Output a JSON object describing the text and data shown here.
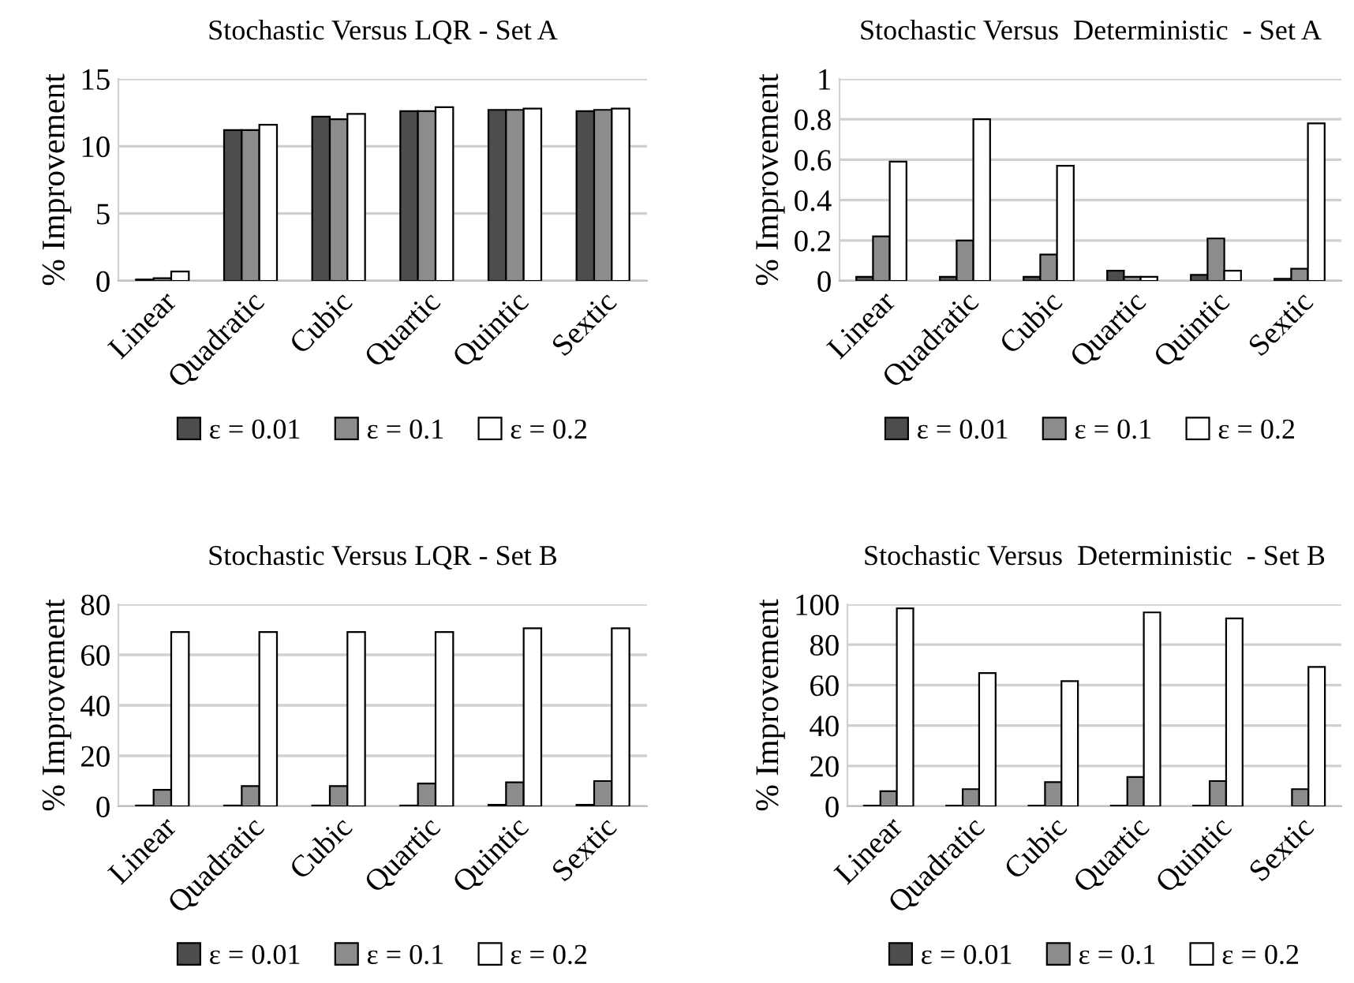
{
  "chart_data": [
    {
      "type": "bar",
      "title": "Stochastic Versus LQR - Set A",
      "ylabel": "% Improvement",
      "categories": [
        "Linear",
        "Quadratic",
        "Cubic",
        "Quartic",
        "Quintic",
        "Sextic"
      ],
      "series": [
        {
          "name": "ε = 0.01",
          "color": "#4d4d4d",
          "values": [
            0.1,
            11.2,
            12.2,
            12.6,
            12.7,
            12.6
          ]
        },
        {
          "name": "ε = 0.1",
          "color": "#8c8c8c",
          "values": [
            0.2,
            11.2,
            12.0,
            12.6,
            12.7,
            12.7
          ]
        },
        {
          "name": "ε = 0.2",
          "color": "#ffffff",
          "values": [
            0.7,
            11.6,
            12.4,
            12.9,
            12.8,
            12.8
          ]
        }
      ],
      "ylim": [
        0,
        15
      ],
      "yticks": [
        0,
        5,
        10,
        15
      ],
      "grid": "y",
      "legend": "bottom"
    },
    {
      "type": "bar",
      "title": "Stochastic Versus  Deterministic  - Set A",
      "ylabel": "% Improvement",
      "categories": [
        "Linear",
        "Quadratic",
        "Cubic",
        "Quartic",
        "Quintic",
        "Sextic"
      ],
      "series": [
        {
          "name": "ε = 0.01",
          "color": "#4d4d4d",
          "values": [
            0.02,
            0.02,
            0.02,
            0.05,
            0.03,
            0.01
          ]
        },
        {
          "name": "ε = 0.1",
          "color": "#8c8c8c",
          "values": [
            0.22,
            0.2,
            0.13,
            0.02,
            0.21,
            0.06
          ]
        },
        {
          "name": "ε = 0.2",
          "color": "#ffffff",
          "values": [
            0.59,
            0.8,
            0.57,
            0.02,
            0.05,
            0.78
          ]
        }
      ],
      "ylim": [
        0,
        1
      ],
      "yticks": [
        0,
        0.2,
        0.4,
        0.6,
        0.8,
        1
      ],
      "grid": "y",
      "legend": "bottom"
    },
    {
      "type": "bar",
      "title": "Stochastic Versus LQR - Set B",
      "ylabel": "% Improvement",
      "categories": [
        "Linear",
        "Quadratic",
        "Cubic",
        "Quartic",
        "Quintic",
        "Sextic"
      ],
      "series": [
        {
          "name": "ε = 0.01",
          "color": "#4d4d4d",
          "values": [
            0.3,
            0.3,
            0.3,
            0.3,
            0.6,
            0.6
          ]
        },
        {
          "name": "ε = 0.1",
          "color": "#8c8c8c",
          "values": [
            6.5,
            8,
            8,
            9,
            9.5,
            10
          ]
        },
        {
          "name": "ε = 0.2",
          "color": "#ffffff",
          "values": [
            69,
            69,
            69,
            69,
            70.5,
            70.5
          ]
        }
      ],
      "ylim": [
        0,
        80
      ],
      "yticks": [
        0,
        20,
        40,
        60,
        80
      ],
      "grid": "y",
      "legend": "bottom"
    },
    {
      "type": "bar",
      "title": "Stochastic Versus  Deterministic  - Set B",
      "ylabel": "% Improvement",
      "categories": [
        "Linear",
        "Quadratic",
        "Cubic",
        "Quartic",
        "Quintic",
        "Sextic"
      ],
      "series": [
        {
          "name": "ε = 0.01",
          "color": "#4d4d4d",
          "values": [
            0.3,
            0.3,
            0.3,
            0.3,
            0.3,
            null
          ]
        },
        {
          "name": "ε = 0.1",
          "color": "#8c8c8c",
          "values": [
            7.5,
            8.5,
            12,
            14.5,
            12.5,
            8.5
          ]
        },
        {
          "name": "ε = 0.2",
          "color": "#ffffff",
          "values": [
            98,
            66,
            62,
            96,
            93,
            69
          ]
        }
      ],
      "ylim": [
        0,
        100
      ],
      "yticks": [
        0,
        20,
        40,
        60,
        80,
        100
      ],
      "grid": "y",
      "legend": "bottom"
    }
  ]
}
